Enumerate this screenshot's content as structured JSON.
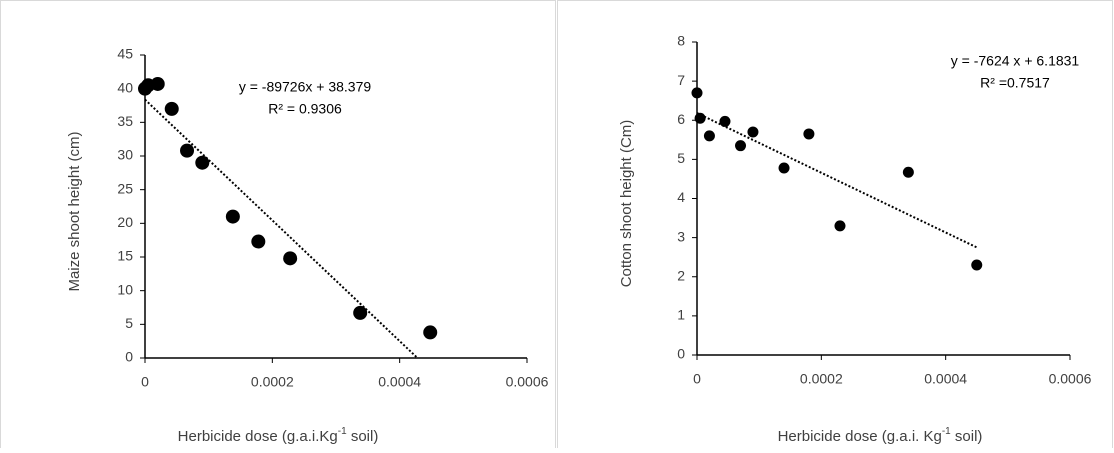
{
  "chart_data": [
    {
      "type": "scatter",
      "y_label": "Maize shoot height (cm)",
      "x_label": {
        "text": "Herbicide dose (g.a.i.Kg",
        "sup": "-1",
        "after": " soil)"
      },
      "annotations": [
        "y = -89726x + 38.379",
        "R² = 0.9306"
      ],
      "x": [
        0,
        5e-06,
        2e-05,
        4.2e-05,
        6.6e-05,
        9e-05,
        0.000138,
        0.000178,
        0.000228,
        0.000338,
        0.000448
      ],
      "values": [
        40,
        40.5,
        40.7,
        37,
        30.8,
        29,
        21,
        17.3,
        14.8,
        6.7,
        3.8
      ],
      "color": "#000000",
      "trendline": {
        "x": [
          0,
          0.000428
        ],
        "values": [
          38.379,
          0
        ]
      },
      "xlim": [
        0,
        0.0006
      ],
      "xticks": [
        0,
        0.0002,
        0.0004,
        0.0006
      ],
      "ylim": [
        0,
        45
      ],
      "yticks": [
        0,
        5,
        10,
        15,
        20,
        25,
        30,
        35,
        40,
        45
      ]
    },
    {
      "type": "scatter",
      "y_label": "Cotton shoot height (Cm)",
      "x_label": {
        "text": "Herbicide dose (g.a.i. Kg",
        "sup": "-1",
        "after": " soil)"
      },
      "annotations": [
        "y = -7624 x + 6.1831",
        "R² =0.7517"
      ],
      "x": [
        0,
        5e-06,
        2e-05,
        4.5e-05,
        7e-05,
        9e-05,
        0.00014,
        0.00018,
        0.00023,
        0.00034,
        0.00045
      ],
      "values": [
        6.7,
        6.05,
        5.6,
        5.97,
        5.35,
        5.7,
        4.78,
        5.65,
        3.3,
        4.67,
        2.3
      ],
      "color": "#000000",
      "trendline": {
        "x": [
          0,
          0.00045
        ],
        "values": [
          6.1831,
          2.75
        ]
      },
      "xlim": [
        0,
        0.0006
      ],
      "xticks": [
        0,
        0.0002,
        0.0004,
        0.0006
      ],
      "ylim": [
        0,
        8
      ],
      "yticks": [
        0,
        1,
        2,
        3,
        4,
        5,
        6,
        7,
        8
      ]
    }
  ]
}
